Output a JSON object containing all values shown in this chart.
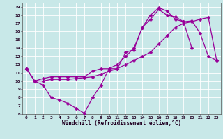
{
  "xlabel": "Windchill (Refroidissement éolien,°C)",
  "background_color": "#c8e8e8",
  "grid_color": "#ffffff",
  "line_color": "#990099",
  "markersize": 2.5,
  "linewidth": 0.9,
  "xlim": [
    -0.5,
    23.5
  ],
  "ylim": [
    6,
    19.5
  ],
  "xticks": [
    0,
    1,
    2,
    3,
    4,
    5,
    6,
    7,
    8,
    9,
    10,
    11,
    12,
    13,
    14,
    15,
    16,
    17,
    18,
    19,
    20,
    21,
    22,
    23
  ],
  "yticks": [
    6,
    7,
    8,
    9,
    10,
    11,
    12,
    13,
    14,
    15,
    16,
    17,
    18,
    19
  ],
  "line1_x": [
    0,
    1,
    2,
    3,
    4,
    5,
    6,
    7,
    8,
    9,
    10,
    11,
    12,
    13,
    14,
    15,
    16,
    17,
    18,
    19,
    20
  ],
  "line1_y": [
    11.5,
    10.0,
    9.5,
    8.0,
    7.7,
    7.3,
    6.7,
    6.1,
    8.0,
    9.5,
    11.5,
    11.5,
    13.5,
    13.8,
    16.5,
    18.0,
    18.9,
    18.5,
    17.5,
    17.2,
    14.0
  ],
  "line2_x": [
    0,
    1,
    2,
    3,
    4,
    5,
    6,
    7,
    8,
    9,
    10,
    11,
    12,
    13,
    14,
    15,
    16,
    17,
    18,
    19,
    20,
    21,
    22,
    23
  ],
  "line2_y": [
    11.5,
    10.0,
    10.3,
    10.5,
    10.5,
    10.5,
    10.5,
    10.5,
    11.2,
    11.5,
    11.5,
    12.0,
    13.0,
    14.0,
    16.5,
    17.5,
    18.7,
    18.0,
    17.8,
    17.2,
    17.3,
    15.8,
    13.0,
    12.5
  ],
  "line3_x": [
    0,
    1,
    2,
    3,
    4,
    5,
    6,
    7,
    8,
    9,
    10,
    11,
    12,
    13,
    14,
    15,
    16,
    17,
    18,
    19,
    20,
    21,
    22,
    23
  ],
  "line3_y": [
    11.5,
    10.0,
    10.0,
    10.2,
    10.2,
    10.2,
    10.3,
    10.4,
    10.5,
    10.8,
    11.2,
    11.5,
    12.0,
    12.5,
    13.0,
    13.5,
    14.5,
    15.5,
    16.5,
    17.0,
    17.2,
    17.5,
    17.7,
    12.5
  ]
}
